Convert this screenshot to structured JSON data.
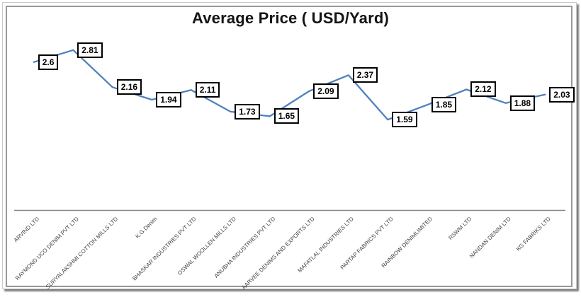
{
  "chart_data": {
    "type": "line",
    "title": "Average Price ( USD/Yard)",
    "categories": [
      "ARVIND LTD",
      "RAYMOND UCO DENIM PVT LTD",
      "SURYALAKSHMI COTTON MILLS LTD",
      "K.G.Denim",
      "BHASKAR INDUSTRIES PVT LTD",
      "OSWAL WOOLLEN MILLS LTD",
      "ANUBHA INDUSTRIES PVT LTD",
      "AARVEE DENIMS AND EXPORTS LTD",
      "MAFATLAL INDUSTRIES LTD",
      "PARTAP FABRICS PVT LTD",
      "RAINBOW DENIMLIMITED",
      "RSWM LTD",
      "NANDAN DENIM LTD",
      "KG FABRIKS LTD"
    ],
    "values": [
      2.6,
      2.81,
      2.16,
      1.94,
      2.11,
      1.73,
      1.65,
      2.09,
      2.37,
      1.59,
      1.85,
      2.12,
      1.88,
      2.03
    ],
    "value_labels": [
      "2.6",
      "2.81",
      "2.16",
      "1.94",
      "2.11",
      "1.73",
      "1.65",
      "2.09",
      "2.37",
      "1.59",
      "1.85",
      "2.12",
      "1.88",
      "2.03"
    ],
    "xlabel": "",
    "ylabel": "",
    "ylim": [
      0,
      3
    ],
    "grid": false,
    "legend": "none",
    "tick_label_rotation_deg": 45,
    "colors": {
      "line": "#4F81BD",
      "axis": "#858585",
      "data_label_border": "#000000",
      "data_label_fill": "#FFFFFF",
      "data_label_text": "#000000",
      "tick_label_text": "#3F3F3F",
      "title_text": "#141414"
    },
    "data_labels": {
      "position": "right",
      "boxed": true
    }
  }
}
